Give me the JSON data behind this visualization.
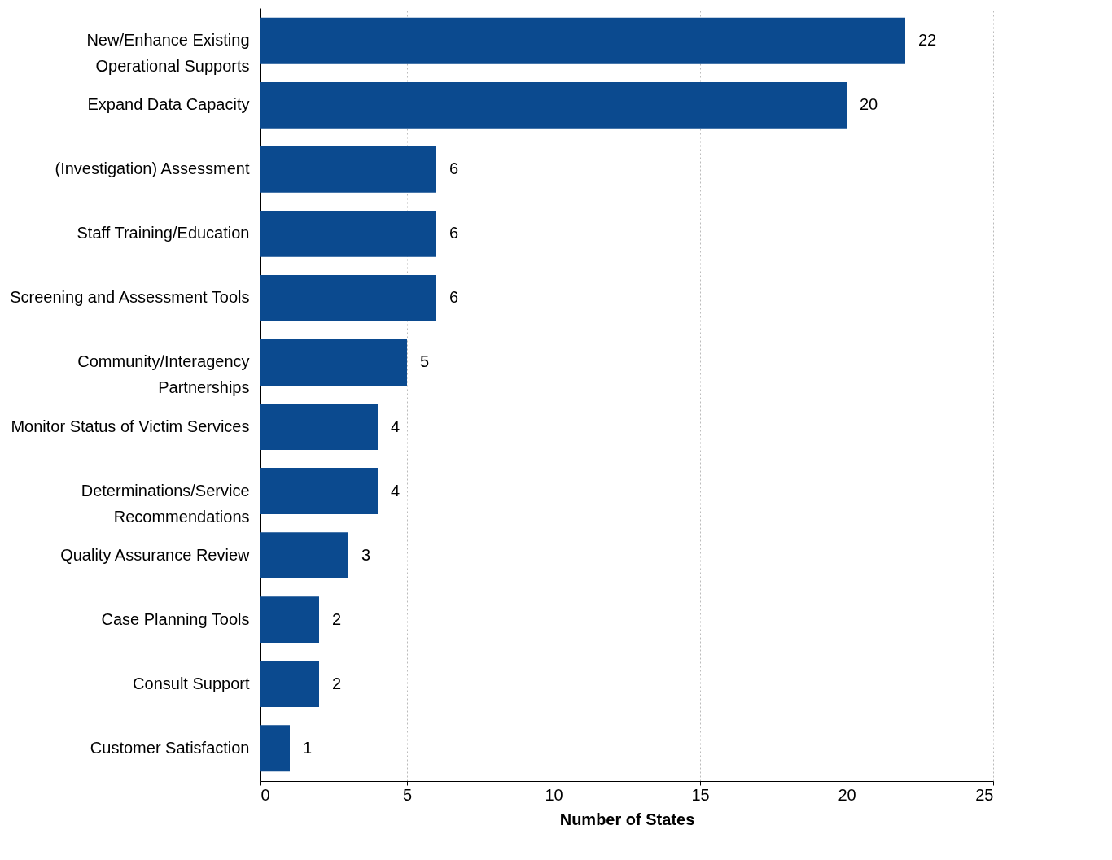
{
  "chart_data": {
    "type": "bar",
    "orientation": "horizontal",
    "xlabel": "Number of States",
    "categories": [
      "New/Enhance Existing Operational Supports",
      "Expand Data Capacity",
      "(Investigation) Assessment",
      "Staff Training/Education",
      "Screening and Assessment Tools",
      "Community/Interagency Partnerships",
      "Monitor Status of Victim Services",
      "Determinations/Service Recommendations",
      "Quality Assurance Review",
      "Case Planning Tools",
      "Consult Support",
      "Customer Satisfaction"
    ],
    "values": [
      22,
      20,
      6,
      6,
      6,
      5,
      4,
      4,
      3,
      2,
      2,
      1
    ],
    "color": "#0b4a8f",
    "xlim": [
      0,
      25
    ],
    "xticks": [
      0,
      5,
      10,
      15,
      20,
      25
    ],
    "grid": "x",
    "data_labels": true
  }
}
